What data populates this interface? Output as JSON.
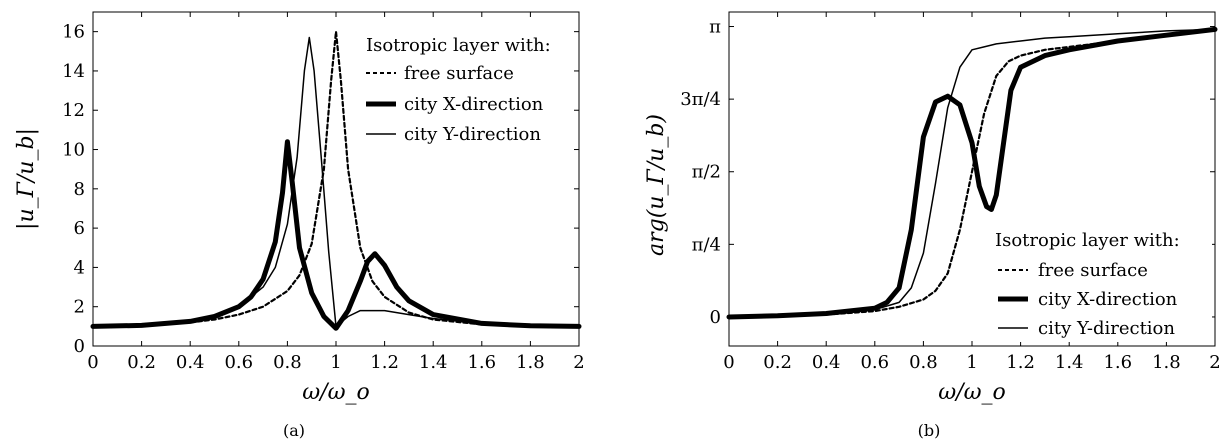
{
  "chart_data": [
    {
      "type": "line",
      "caption": "(a)",
      "xlabel": "ω/ω_o",
      "ylabel": "|u_Γ/u_b|",
      "xlim": [
        0,
        2
      ],
      "ylim": [
        0,
        17
      ],
      "xticks": [
        "0",
        "0.2",
        "0.4",
        "0.6",
        "0.8",
        "1",
        "1.2",
        "1.4",
        "1.6",
        "1.8",
        "2"
      ],
      "yticks": [
        "0",
        "2",
        "4",
        "6",
        "8",
        "10",
        "12",
        "14",
        "16"
      ],
      "legend": {
        "title": "Isotropic layer with:",
        "placement": "top-right"
      },
      "series": [
        {
          "name": "free surface",
          "style": "dotted",
          "x": [
            0,
            0.2,
            0.4,
            0.5,
            0.6,
            0.7,
            0.8,
            0.85,
            0.9,
            0.95,
            0.98,
            1.0,
            1.02,
            1.05,
            1.1,
            1.15,
            1.2,
            1.3,
            1.4,
            1.6,
            1.8,
            2.0
          ],
          "y": [
            1.0,
            1.05,
            1.2,
            1.35,
            1.6,
            2.0,
            2.8,
            3.6,
            5.2,
            9.0,
            13.5,
            16.0,
            13.5,
            9.0,
            5.0,
            3.3,
            2.5,
            1.7,
            1.35,
            1.1,
            1.02,
            1.0
          ]
        },
        {
          "name": "city X-direction",
          "style": "thick",
          "x": [
            0,
            0.2,
            0.4,
            0.5,
            0.6,
            0.65,
            0.7,
            0.75,
            0.78,
            0.8,
            0.82,
            0.85,
            0.9,
            0.95,
            1.0,
            1.05,
            1.1,
            1.13,
            1.16,
            1.2,
            1.25,
            1.3,
            1.4,
            1.6,
            1.8,
            2.0
          ],
          "y": [
            1.0,
            1.05,
            1.25,
            1.5,
            2.0,
            2.5,
            3.4,
            5.3,
            7.8,
            10.4,
            8.3,
            5.0,
            2.7,
            1.5,
            0.9,
            1.8,
            3.3,
            4.3,
            4.7,
            4.1,
            3.0,
            2.3,
            1.6,
            1.15,
            1.03,
            1.0
          ]
        },
        {
          "name": "city Y-direction",
          "style": "thin",
          "x": [
            0,
            0.2,
            0.4,
            0.5,
            0.6,
            0.7,
            0.75,
            0.8,
            0.84,
            0.87,
            0.89,
            0.91,
            0.94,
            0.97,
            1.0,
            1.05,
            1.1,
            1.2,
            1.3,
            1.4,
            1.6,
            1.8,
            2.0
          ],
          "y": [
            1.0,
            1.05,
            1.25,
            1.5,
            2.0,
            3.0,
            4.0,
            6.2,
            9.6,
            14.0,
            15.7,
            14.0,
            9.5,
            4.8,
            1.0,
            1.5,
            1.8,
            1.8,
            1.6,
            1.4,
            1.15,
            1.04,
            1.0
          ]
        }
      ]
    },
    {
      "type": "line",
      "caption": "(b)",
      "xlabel": "ω/ω_o",
      "ylabel": "arg(u_Γ/u_b)",
      "xlim": [
        0,
        2
      ],
      "ylim": [
        -0.1,
        1.05
      ],
      "xticks": [
        "0",
        "0.2",
        "0.4",
        "0.6",
        "0.8",
        "1",
        "1.2",
        "1.4",
        "1.6",
        "1.8",
        "2"
      ],
      "yticks": [
        "0",
        "π/4",
        "π/2",
        "3π/4",
        "π"
      ],
      "y_unit": "multiples of π",
      "legend": {
        "title": "Isotropic layer with:",
        "placement": "bottom-right"
      },
      "series": [
        {
          "name": "free surface",
          "style": "dotted",
          "x": [
            0,
            0.2,
            0.4,
            0.6,
            0.7,
            0.8,
            0.85,
            0.9,
            0.95,
            1.0,
            1.05,
            1.1,
            1.15,
            1.2,
            1.3,
            1.4,
            1.6,
            1.8,
            2.0
          ],
          "y": [
            0.0,
            0.003,
            0.008,
            0.02,
            0.035,
            0.06,
            0.09,
            0.15,
            0.3,
            0.5,
            0.7,
            0.83,
            0.88,
            0.9,
            0.92,
            0.93,
            0.95,
            0.97,
            0.99
          ]
        },
        {
          "name": "city X-direction",
          "style": "thick",
          "x": [
            0,
            0.2,
            0.4,
            0.6,
            0.65,
            0.7,
            0.75,
            0.8,
            0.85,
            0.9,
            0.95,
            1.0,
            1.03,
            1.06,
            1.08,
            1.1,
            1.13,
            1.16,
            1.2,
            1.3,
            1.4,
            1.6,
            1.8,
            2.0
          ],
          "y": [
            0.0,
            0.004,
            0.012,
            0.03,
            0.05,
            0.1,
            0.3,
            0.62,
            0.74,
            0.76,
            0.73,
            0.6,
            0.45,
            0.38,
            0.37,
            0.42,
            0.6,
            0.78,
            0.86,
            0.9,
            0.92,
            0.95,
            0.97,
            0.99
          ]
        },
        {
          "name": "city Y-direction",
          "style": "thin",
          "x": [
            0,
            0.2,
            0.4,
            0.6,
            0.7,
            0.75,
            0.8,
            0.85,
            0.9,
            0.95,
            1.0,
            1.05,
            1.1,
            1.2,
            1.3,
            1.4,
            1.6,
            1.8,
            2.0
          ],
          "y": [
            0.0,
            0.004,
            0.01,
            0.025,
            0.05,
            0.1,
            0.22,
            0.46,
            0.72,
            0.86,
            0.92,
            0.93,
            0.94,
            0.95,
            0.96,
            0.965,
            0.975,
            0.985,
            0.99
          ]
        }
      ]
    }
  ]
}
